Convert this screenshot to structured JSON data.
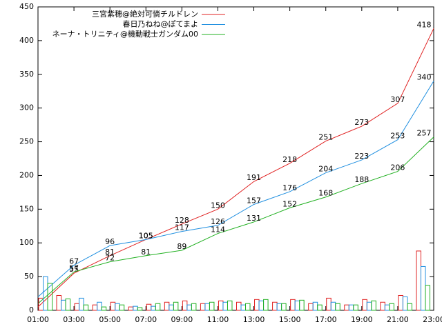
{
  "chart_data": [
    {
      "type": "line",
      "xlim": [
        1,
        23
      ],
      "xticks": [
        {
          "value": 1,
          "label": "01:00"
        },
        {
          "value": 3,
          "label": "03:00"
        },
        {
          "value": 5,
          "label": "05:00"
        },
        {
          "value": 7,
          "label": "07:00"
        },
        {
          "value": 9,
          "label": "09:00"
        },
        {
          "value": 11,
          "label": "11:00"
        },
        {
          "value": 13,
          "label": "13:00"
        },
        {
          "value": 15,
          "label": "15:00"
        },
        {
          "value": 17,
          "label": "17:00"
        },
        {
          "value": 19,
          "label": "19:00"
        },
        {
          "value": 21,
          "label": "21:00"
        },
        {
          "value": 23,
          "label": "23:00"
        }
      ],
      "ylim": [
        0,
        450
      ],
      "yticks": [
        0,
        50,
        100,
        150,
        200,
        250,
        300,
        350,
        400,
        450
      ],
      "legend": "top-left",
      "x": [
        1,
        3,
        5,
        7,
        9,
        11,
        13,
        15,
        17,
        19,
        21,
        23
      ],
      "series": [
        {
          "name": "三宮紫穂@絶対可憐チルドレン",
          "color": "#e02020",
          "values": [
            5,
            55,
            81,
            105,
            128,
            150,
            191,
            218,
            251,
            273,
            307,
            418
          ]
        },
        {
          "name": "春日乃ねね@ぽてまよ",
          "color": "#1f8fe0",
          "values": [
            20,
            67,
            96,
            105,
            117,
            126,
            157,
            176,
            204,
            223,
            253,
            340
          ]
        },
        {
          "name": "ネーナ・トリニティ@機動戦士ガンダム00",
          "color": "#20b020",
          "values": [
            10,
            57,
            72,
            81,
            89,
            114,
            131,
            152,
            168,
            188,
            206,
            257
          ]
        }
      ]
    },
    {
      "type": "bar",
      "xlim": [
        1,
        23
      ],
      "ylim": [
        0,
        450
      ],
      "x": [
        1,
        2,
        3,
        4,
        5,
        6,
        7,
        8,
        9,
        10,
        11,
        12,
        13,
        14,
        15,
        16,
        17,
        18,
        19,
        20,
        21,
        22
      ],
      "series": [
        {
          "color": "#e02020",
          "values": [
            18,
            22,
            10,
            8,
            12,
            5,
            9,
            12,
            14,
            10,
            14,
            12,
            16,
            12,
            16,
            10,
            18,
            8,
            16,
            12,
            22,
            88
          ]
        },
        {
          "color": "#1f8fe0",
          "values": [
            50,
            15,
            18,
            12,
            10,
            6,
            6,
            8,
            8,
            10,
            12,
            8,
            14,
            10,
            14,
            12,
            12,
            8,
            12,
            8,
            20,
            65
          ]
        },
        {
          "color": "#20b020",
          "values": [
            40,
            17,
            8,
            5,
            8,
            4,
            10,
            12,
            10,
            12,
            14,
            10,
            16,
            10,
            15,
            8,
            10,
            8,
            14,
            10,
            10,
            37
          ]
        }
      ]
    }
  ]
}
